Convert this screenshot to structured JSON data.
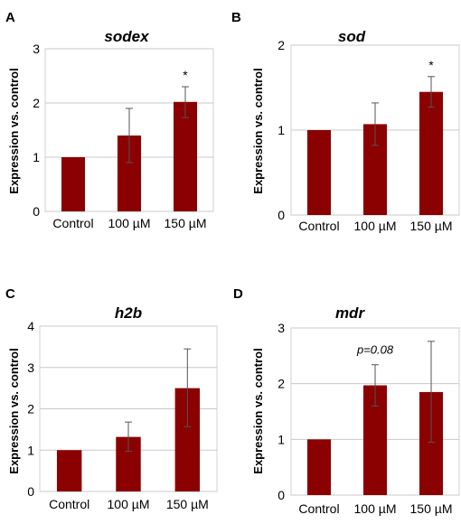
{
  "colors": {
    "bar": "#8b0000"
  },
  "chart_data": [
    {
      "panel": "A",
      "type": "bar",
      "title": "sodex",
      "ylabel": "Expression vs. control",
      "categories": [
        "Control",
        "100 µM",
        "150 µM"
      ],
      "values": [
        1.0,
        1.4,
        2.02
      ],
      "error_upper": [
        1.0,
        1.9,
        2.3
      ],
      "error_lower": [
        1.0,
        0.9,
        1.73
      ],
      "annotations": [
        "",
        "",
        "*"
      ],
      "ylim": [
        0,
        3
      ],
      "yticks": [
        "0",
        "1",
        "2",
        "3"
      ],
      "grid": true
    },
    {
      "panel": "B",
      "type": "bar",
      "title": "sod",
      "ylabel": "Expression vs. control",
      "categories": [
        "Control",
        "100 µM",
        "150 µM"
      ],
      "values": [
        1.0,
        1.07,
        1.45
      ],
      "error_upper": [
        1.0,
        1.32,
        1.63
      ],
      "error_lower": [
        1.0,
        0.82,
        1.27
      ],
      "annotations": [
        "",
        "",
        "*"
      ],
      "ylim": [
        0,
        2
      ],
      "yticks": [
        "0",
        "1",
        "2"
      ],
      "grid": true
    },
    {
      "panel": "C",
      "type": "bar",
      "title": "h2b",
      "ylabel": "Expression vs. control",
      "categories": [
        "Control",
        "100 µM",
        "150 µM"
      ],
      "values": [
        1.0,
        1.32,
        2.5
      ],
      "error_upper": [
        1.0,
        1.68,
        3.45
      ],
      "error_lower": [
        1.0,
        0.97,
        1.57
      ],
      "annotations": [
        "",
        "",
        ""
      ],
      "ylim": [
        0,
        4
      ],
      "yticks": [
        "0",
        "1",
        "2",
        "3",
        "4"
      ],
      "grid": true
    },
    {
      "panel": "D",
      "type": "bar",
      "title": "mdr",
      "ylabel": "Expression vs. control",
      "categories": [
        "Control",
        "100 µM",
        "150 µM"
      ],
      "values": [
        1.0,
        1.97,
        1.85
      ],
      "error_upper": [
        1.0,
        2.34,
        2.76
      ],
      "error_lower": [
        1.0,
        1.6,
        0.95
      ],
      "annotations": [
        "",
        "p=0.08",
        ""
      ],
      "ylim": [
        0,
        3
      ],
      "yticks": [
        "0",
        "1",
        "2",
        "3"
      ],
      "grid": true
    }
  ]
}
